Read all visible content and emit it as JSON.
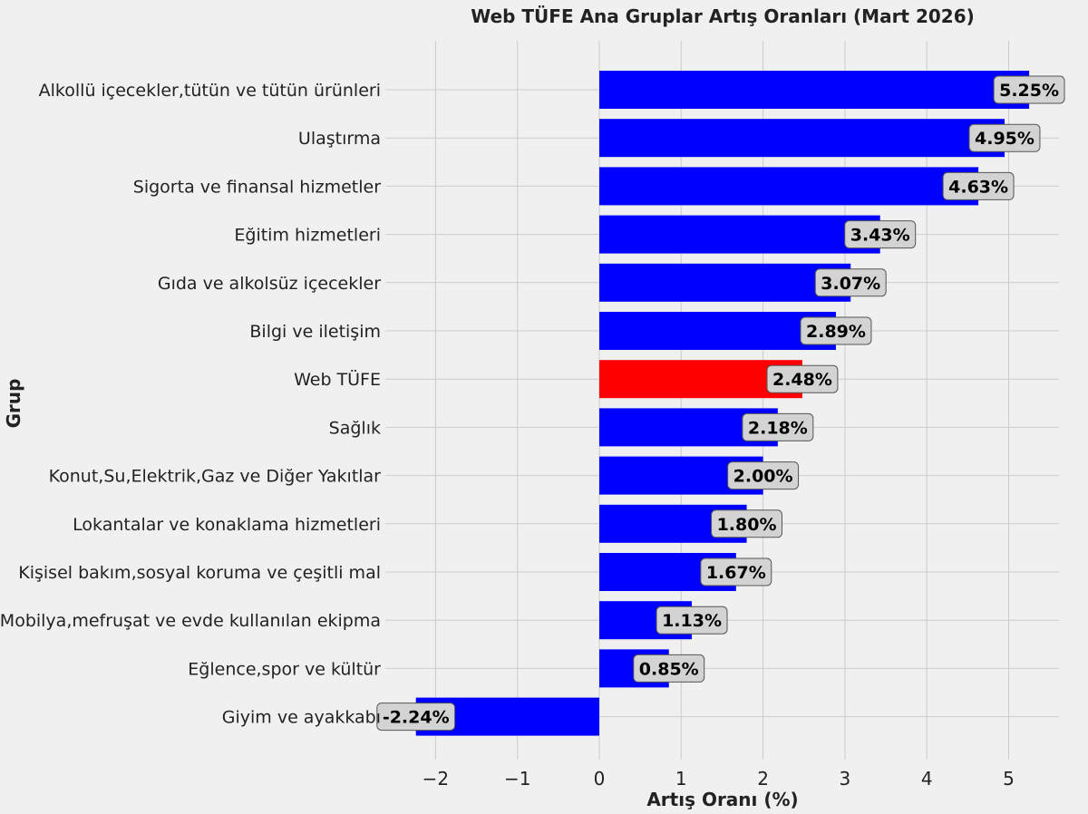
{
  "chart_data": {
    "type": "bar",
    "orientation": "horizontal",
    "title": "Web TÜFE Ana Gruplar Artış Oranları (Mart 2026)",
    "xlabel": "Artış Oranı (%)",
    "ylabel": "Grup",
    "xlim": [
      -2.5,
      5.6
    ],
    "x_ticks": [
      -2,
      -1,
      0,
      1,
      2,
      3,
      4,
      5
    ],
    "x_tick_labels": [
      "−2",
      "−1",
      "0",
      "1",
      "2",
      "3",
      "4",
      "5"
    ],
    "grid": true,
    "categories": [
      "Alkollü içecekler,tütün ve tütün ürünleri",
      "Ulaştırma",
      "Sigorta ve finansal hizmetler",
      "Eğitim hizmetleri",
      "Gıda ve alkolsüz içecekler",
      "Bilgi ve iletişim",
      "Web TÜFE",
      "Sağlık",
      "Konut,Su,Elektrik,Gaz ve Diğer Yakıtlar",
      "Lokantalar ve konaklama hizmetleri",
      "Kişisel bakım,sosyal koruma ve çeşitli mal",
      "Mobilya,mefruşat ve evde kullanılan ekipma",
      "Eğlence,spor ve kültür",
      "Giyim ve ayakkabı"
    ],
    "values": [
      5.25,
      4.95,
      4.63,
      3.43,
      3.07,
      2.89,
      2.48,
      2.18,
      2.0,
      1.8,
      1.67,
      1.13,
      0.85,
      -2.24
    ],
    "value_labels": [
      "5.25%",
      "4.95%",
      "4.63%",
      "3.43%",
      "3.07%",
      "2.89%",
      "2.48%",
      "2.18%",
      "2.00%",
      "1.80%",
      "1.67%",
      "1.13%",
      "0.85%",
      "-2.24%"
    ],
    "highlight_category": "Web TÜFE",
    "colors": {
      "bar": "#0000ff",
      "highlight": "#ff0000",
      "background": "#f0f0f0",
      "grid": "#cbcbcb",
      "label_box": "#d3d3d3"
    }
  }
}
